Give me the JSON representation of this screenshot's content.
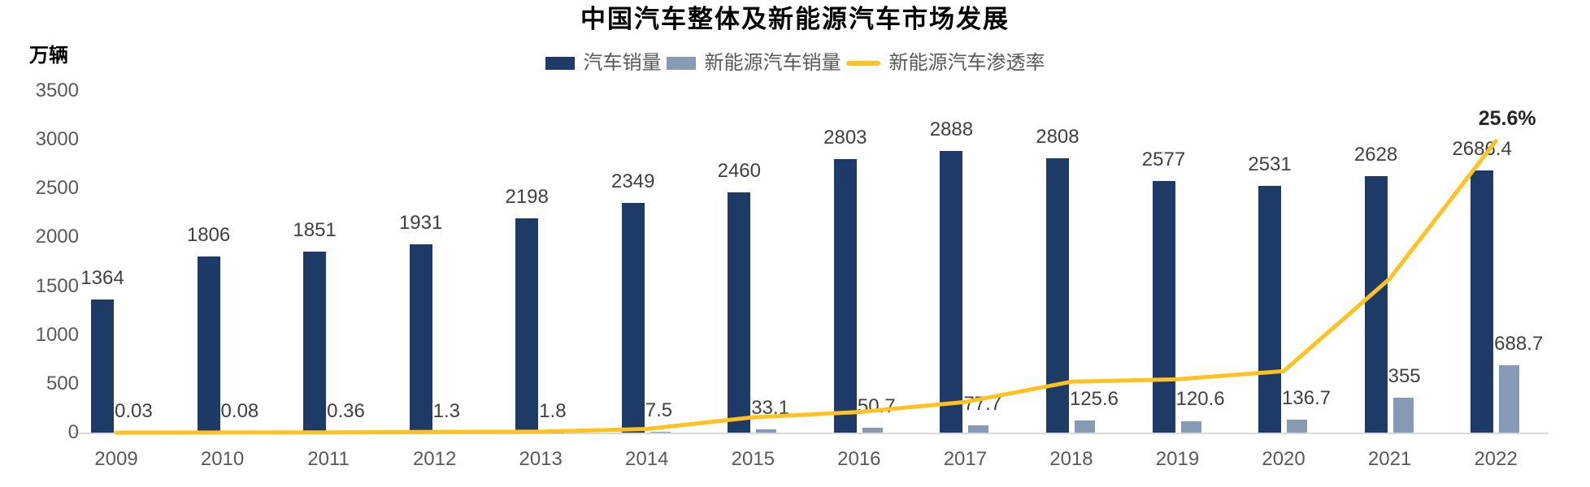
{
  "title": "中国汽车整体及新能源汽车市场发展",
  "y_axis_unit": "万辆",
  "legend": [
    {
      "label": "汽车销量",
      "type": "rect",
      "color": "#1e3a66",
      "key": "total-sales"
    },
    {
      "label": "新能源汽车销量",
      "type": "rect",
      "color": "#8699b5",
      "key": "nev-sales"
    },
    {
      "label": "新能源汽车渗透率",
      "type": "line",
      "color": "#ffc220",
      "key": "penetration-rate"
    }
  ],
  "colors": {
    "total_sales_bar": "#1e3a66",
    "nev_sales_bar": "#8699b5",
    "penetration_line": "#ffc220",
    "axis_line": "#d9d9d9",
    "tick_text": "#595959",
    "value_text": "#404040",
    "end_label_text": "#262626"
  },
  "chart_data": {
    "type": "bar",
    "subtype": "grouped-bars-with-line",
    "title": "中国汽车整体及新能源汽车市场发展",
    "xlabel": "",
    "ylabel": "万辆",
    "categories": [
      "2009",
      "2010",
      "2011",
      "2012",
      "2013",
      "2014",
      "2015",
      "2016",
      "2017",
      "2018",
      "2019",
      "2020",
      "2021",
      "2022"
    ],
    "series": [
      {
        "name": "汽车销量",
        "type": "bar",
        "axis": "left",
        "color": "#1e3a66",
        "values": [
          1364,
          1806,
          1851,
          1931,
          2198,
          2349,
          2460,
          2803,
          2888,
          2808,
          2577,
          2531,
          2628,
          2686.4
        ]
      },
      {
        "name": "新能源汽车销量",
        "type": "bar",
        "axis": "left",
        "color": "#8699b5",
        "values": [
          0.03,
          0.08,
          0.36,
          1.3,
          1.8,
          7.5,
          33.1,
          50.7,
          77.7,
          125.6,
          120.6,
          136.7,
          355,
          688.7
        ]
      },
      {
        "name": "新能源汽车渗透率",
        "type": "line",
        "axis": "right",
        "color": "#ffc220",
        "values_pct": [
          0.002,
          0.004,
          0.019,
          0.067,
          0.082,
          0.319,
          1.35,
          1.81,
          2.69,
          4.47,
          4.68,
          5.4,
          13.51,
          25.6
        ],
        "end_label": "25.6%"
      }
    ],
    "left_axis": {
      "min": 0,
      "max": 3500,
      "ticks": [
        0,
        500,
        1000,
        1500,
        2000,
        2500,
        3000,
        3500
      ]
    },
    "right_axis": {
      "min": 0,
      "max": 30,
      "visible": false
    },
    "grid": false,
    "legend_position": "top-center"
  }
}
